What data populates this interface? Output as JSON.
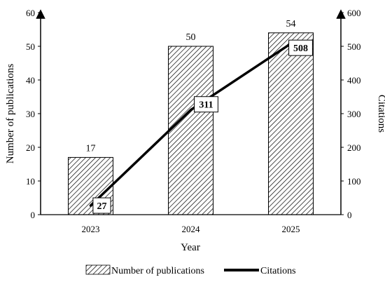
{
  "chart_data": {
    "type": "bar+line",
    "categories": [
      "2023",
      "2024",
      "2025"
    ],
    "xlabel": "Year",
    "ylabel_left": "Number of publications",
    "ylabel_right": "Citations",
    "ylim_left": [
      0,
      60
    ],
    "ylim_right": [
      0,
      600
    ],
    "yticks_left": [
      0,
      10,
      20,
      30,
      40,
      50,
      60
    ],
    "yticks_right": [
      0,
      100,
      200,
      300,
      400,
      500,
      600
    ],
    "grid": false,
    "legend_position": "bottom",
    "series": [
      {
        "name": "Number of publications",
        "type": "bar",
        "axis": "left",
        "pattern": "diagonal-hatch",
        "values": [
          17,
          50,
          54
        ]
      },
      {
        "name": "Citations",
        "type": "line",
        "axis": "right",
        "color": "#000000",
        "values": [
          27,
          311,
          508
        ]
      }
    ]
  }
}
